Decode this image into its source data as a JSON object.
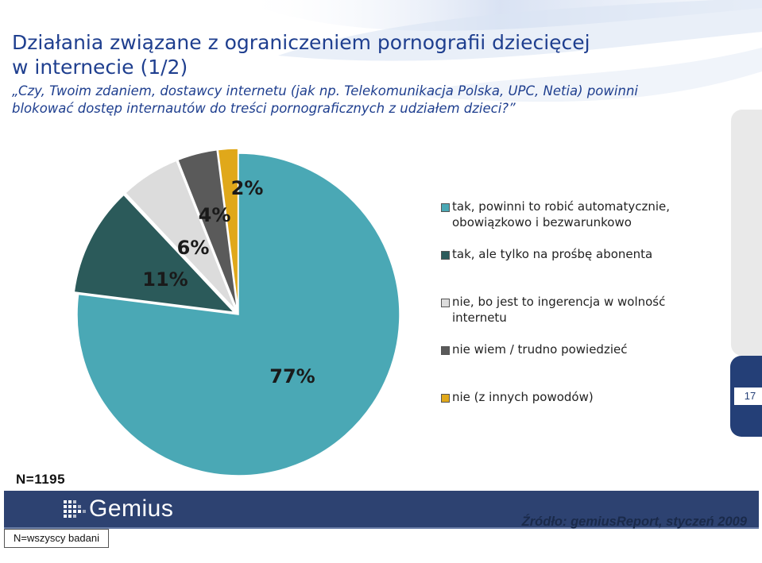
{
  "slide": {
    "title_line1": "Działania związane z ograniczeniem pornografii dziecięcej",
    "title_line2": "w internecie (1/2)",
    "question_line1": "„Czy, Twoim zdaniem, dostawcy internetu (jak np. Telekomunikacja Polska, UPC, Netia) powinni",
    "question_line2": "blokować dostęp internautów do treści pornograficznych z udziałem dzieci?”",
    "sample": "N=1195",
    "sample_note": "N=wszyscy badani",
    "page_number": "17",
    "logo_text": "Gemius",
    "source": "Źródło: gemiusReport, styczeń 2009"
  },
  "colors": {
    "title": "#1f3f8f",
    "footer": "#2d4271"
  },
  "chart_data": {
    "type": "pie",
    "title": "",
    "slices": [
      {
        "label": "tak, powinni to robić automatycznie, obowiązkowo i bezwarunkowo",
        "value": 77,
        "display": "77%",
        "color": "#4aa8b5"
      },
      {
        "label": "tak, ale tylko na prośbę abonenta",
        "value": 11,
        "display": "11%",
        "color": "#2b5a5a"
      },
      {
        "label": "nie, bo jest to ingerencja w wolność internetu",
        "value": 6,
        "display": "6%",
        "color": "#dcdcdc"
      },
      {
        "label": "nie wiem / trudno powiedzieć",
        "value": 4,
        "display": "4%",
        "color": "#5a5a5a"
      },
      {
        "label": "nie (z innych powodów)",
        "value": 2,
        "display": "2%",
        "color": "#e0a81a"
      }
    ],
    "legend_position": "right"
  }
}
